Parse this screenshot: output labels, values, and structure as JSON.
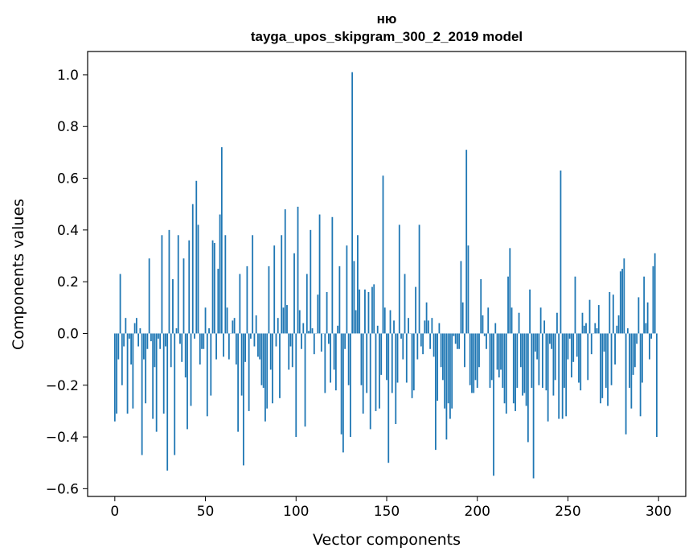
{
  "chart_data": {
    "type": "bar",
    "title_line1": "ню",
    "title_line2": "tayga_upos_skipgram_300_2_2019 model",
    "xlabel": "Vector components",
    "ylabel": "Components values",
    "xlim": [
      -15,
      315
    ],
    "ylim": [
      -0.63,
      1.09
    ],
    "xticks": [
      0,
      50,
      100,
      150,
      200,
      250,
      300
    ],
    "xtick_labels": [
      "0",
      "50",
      "100",
      "150",
      "200",
      "250",
      "300"
    ],
    "yticks": [
      -0.6,
      -0.4,
      -0.2,
      0.0,
      0.2,
      0.4,
      0.6,
      0.8,
      1.0
    ],
    "ytick_labels": [
      "−0.6",
      "−0.4",
      "−0.2",
      "0.0",
      "0.2",
      "0.4",
      "0.6",
      "0.8",
      "1.0"
    ],
    "bar_color": "#1f77b4",
    "values": [
      -0.34,
      -0.31,
      -0.1,
      0.23,
      -0.2,
      -0.05,
      0.06,
      -0.31,
      -0.02,
      -0.12,
      -0.29,
      0.04,
      0.06,
      -0.05,
      0.02,
      -0.47,
      -0.1,
      -0.27,
      -0.06,
      0.29,
      -0.03,
      -0.33,
      -0.13,
      -0.38,
      -0.02,
      -0.06,
      0.38,
      -0.31,
      -0.05,
      -0.53,
      0.4,
      -0.13,
      0.21,
      -0.47,
      0.02,
      0.38,
      -0.04,
      -0.11,
      0.29,
      -0.17,
      -0.37,
      0.36,
      -0.28,
      0.5,
      -0.02,
      0.59,
      0.42,
      -0.12,
      -0.06,
      -0.06,
      0.1,
      -0.32,
      0.02,
      -0.24,
      0.36,
      0.35,
      -0.1,
      0.25,
      0.46,
      0.72,
      -0.09,
      0.38,
      0.1,
      -0.1,
      0.0,
      0.05,
      0.06,
      -0.12,
      -0.38,
      0.23,
      -0.24,
      -0.51,
      -0.11,
      0.26,
      -0.3,
      -0.02,
      0.38,
      -0.05,
      0.07,
      -0.09,
      -0.1,
      -0.2,
      -0.21,
      -0.34,
      -0.29,
      0.26,
      -0.14,
      -0.27,
      0.34,
      -0.05,
      0.06,
      -0.25,
      0.38,
      0.1,
      0.48,
      0.11,
      -0.14,
      -0.05,
      -0.13,
      0.31,
      -0.4,
      0.49,
      0.09,
      -0.06,
      0.04,
      -0.36,
      0.23,
      0.01,
      0.4,
      0.02,
      -0.08,
      0.0,
      0.15,
      0.46,
      -0.07,
      0.0,
      -0.23,
      0.16,
      -0.04,
      -0.19,
      0.45,
      -0.14,
      -0.22,
      0.03,
      0.26,
      -0.39,
      -0.46,
      -0.06,
      0.34,
      -0.2,
      -0.4,
      1.01,
      0.28,
      0.09,
      0.38,
      0.17,
      -0.2,
      -0.31,
      0.17,
      -0.23,
      0.16,
      -0.37,
      0.18,
      0.19,
      -0.3,
      0.03,
      -0.29,
      -0.16,
      0.61,
      0.1,
      -0.18,
      -0.5,
      0.09,
      -0.23,
      0.05,
      -0.35,
      -0.19,
      0.42,
      -0.02,
      -0.1,
      0.23,
      -0.19,
      0.06,
      0.0,
      -0.25,
      -0.22,
      0.18,
      -0.1,
      0.42,
      -0.05,
      -0.08,
      0.05,
      0.12,
      0.05,
      -0.06,
      0.06,
      -0.09,
      -0.45,
      -0.26,
      0.04,
      -0.13,
      -0.18,
      -0.29,
      -0.41,
      -0.27,
      -0.33,
      -0.29,
      -0.01,
      -0.04,
      -0.06,
      -0.06,
      0.28,
      0.12,
      -0.13,
      0.71,
      0.34,
      -0.2,
      -0.23,
      -0.23,
      -0.18,
      -0.21,
      -0.13,
      0.21,
      0.07,
      -0.01,
      -0.06,
      0.1,
      -0.21,
      -0.18,
      -0.55,
      0.04,
      -0.14,
      -0.17,
      -0.14,
      -0.21,
      -0.27,
      -0.31,
      0.22,
      0.33,
      0.1,
      -0.27,
      -0.3,
      -0.21,
      0.08,
      -0.13,
      -0.24,
      -0.23,
      -0.28,
      -0.42,
      0.17,
      -0.21,
      -0.56,
      -0.07,
      -0.1,
      -0.2,
      0.1,
      -0.21,
      0.05,
      -0.22,
      -0.34,
      -0.04,
      -0.06,
      -0.24,
      -0.18,
      0.08,
      -0.33,
      0.63,
      -0.33,
      -0.21,
      -0.32,
      -0.1,
      -0.02,
      -0.17,
      -0.11,
      0.22,
      -0.09,
      -0.19,
      -0.22,
      0.08,
      0.03,
      0.04,
      -0.18,
      0.13,
      -0.08,
      0.0,
      0.04,
      0.02,
      0.11,
      -0.27,
      -0.25,
      -0.07,
      -0.21,
      -0.28,
      0.16,
      -0.2,
      0.15,
      -0.12,
      0.03,
      0.07,
      0.24,
      0.25,
      0.29,
      -0.39,
      0.02,
      -0.21,
      -0.29,
      -0.16,
      -0.13,
      -0.04,
      0.14,
      -0.32,
      -0.19,
      0.22,
      0.04,
      0.12,
      -0.1,
      -0.02,
      0.26,
      0.31,
      -0.4
    ]
  }
}
